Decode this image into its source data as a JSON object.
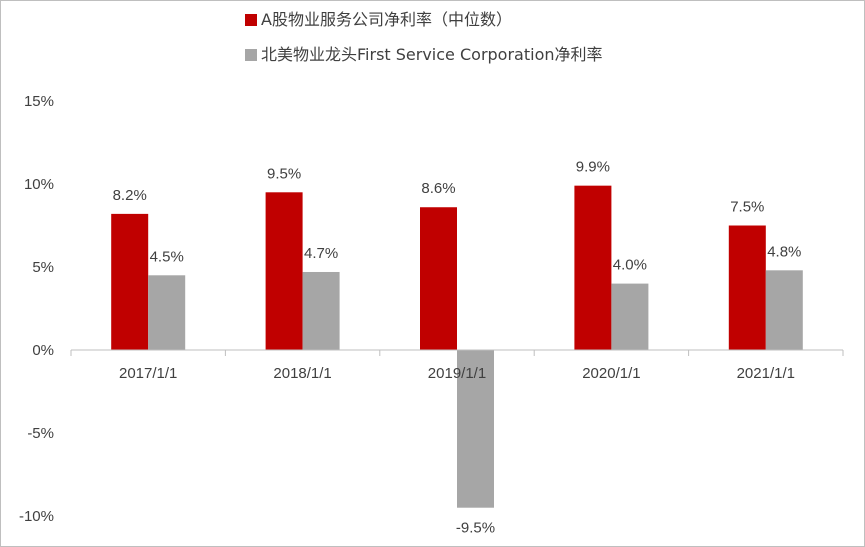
{
  "chart_data": {
    "type": "bar",
    "categories": [
      "2017/1/1",
      "2018/1/1",
      "2019/1/1",
      "2020/1/1",
      "2021/1/1"
    ],
    "series": [
      {
        "name": "A股物业服务公司净利率（中位数）",
        "color": "#C00000",
        "values": [
          8.2,
          9.5,
          8.6,
          9.9,
          7.5
        ],
        "labels": [
          "8.2%",
          "9.5%",
          "8.6%",
          "9.9%",
          "7.5%"
        ]
      },
      {
        "name": "北美物业龙头First Service Corporation净利率",
        "color": "#A6A6A6",
        "values": [
          4.5,
          4.7,
          -9.5,
          4.0,
          4.8
        ],
        "labels": [
          "4.5%",
          "4.7%",
          "-9.5%",
          "4.0%",
          "4.8%"
        ]
      }
    ],
    "yticks": [
      {
        "value": 15,
        "label": "15%"
      },
      {
        "value": 10,
        "label": "10%"
      },
      {
        "value": 5,
        "label": "5%"
      },
      {
        "value": 0,
        "label": "0%"
      },
      {
        "value": -5,
        "label": "-5%"
      },
      {
        "value": -10,
        "label": "-10%"
      }
    ],
    "ylim": [
      -10,
      15
    ],
    "grid": false,
    "legend_position": "top"
  }
}
